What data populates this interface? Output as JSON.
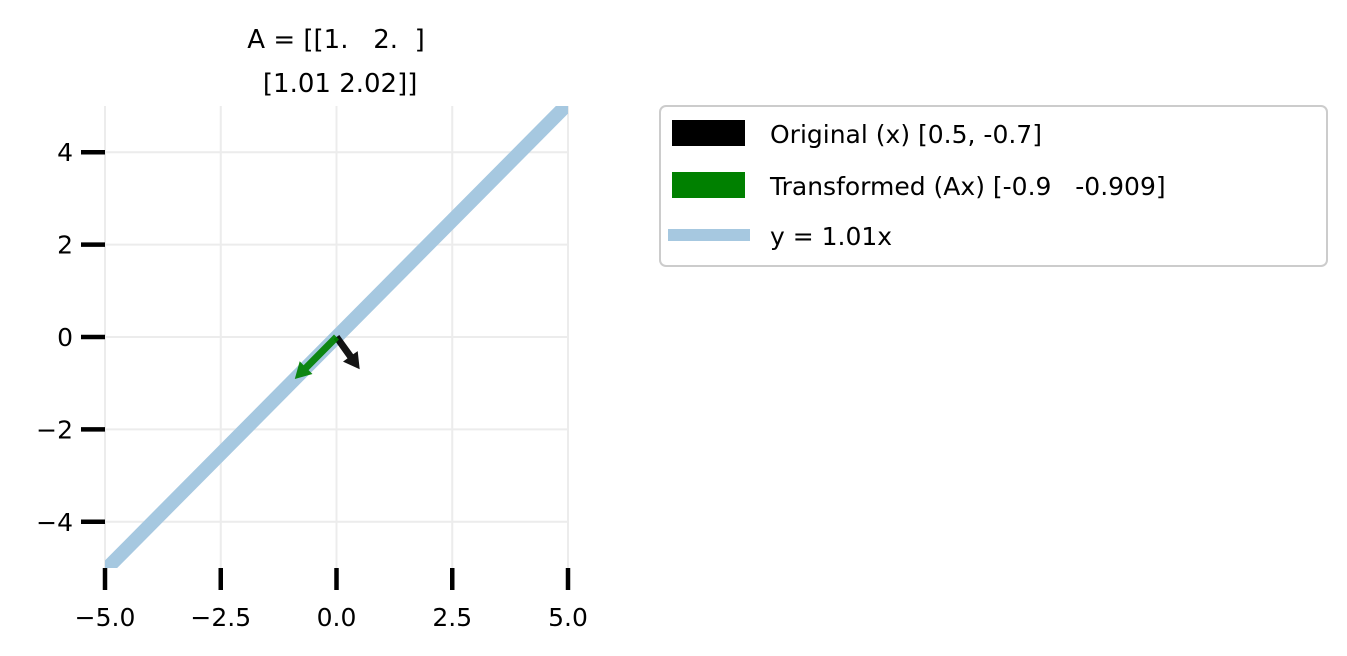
{
  "chart_data": {
    "type": "vector-field",
    "title": "A = [[1.   2.  ]\n [1.01 2.02]]",
    "title_lines": [
      "A = [[1.   2.  ]",
      " [1.01 2.02]]"
    ],
    "xlim": [
      -5,
      5
    ],
    "ylim": [
      -5,
      5
    ],
    "xticks": [
      -5.0,
      -2.5,
      0.0,
      2.5,
      5.0
    ],
    "xtick_labels": [
      "−5.0",
      "−2.5",
      "0.0",
      "2.5",
      "5.0"
    ],
    "yticks": [
      -4,
      -2,
      0,
      2,
      4
    ],
    "ytick_labels": [
      "−4",
      "−2",
      "0",
      "2",
      "4"
    ],
    "grid": true,
    "legend_position": "outside-right-top",
    "series": [
      {
        "name": "Original (x) [0.5, -0.7]",
        "kind": "vector",
        "origin": [
          0,
          0
        ],
        "vector": [
          0.5,
          -0.7
        ],
        "color": "#000000"
      },
      {
        "name": "Transformed (Ax) [-0.9   -0.909]",
        "kind": "vector",
        "origin": [
          0,
          0
        ],
        "vector": [
          -0.9,
          -0.909
        ],
        "color": "#008000"
      },
      {
        "name": "y = 1.01x",
        "kind": "line",
        "slope": 1.01,
        "x": [
          -5,
          5
        ],
        "y": [
          -5.05,
          5.05
        ],
        "color": "#a6c8e0"
      }
    ]
  }
}
